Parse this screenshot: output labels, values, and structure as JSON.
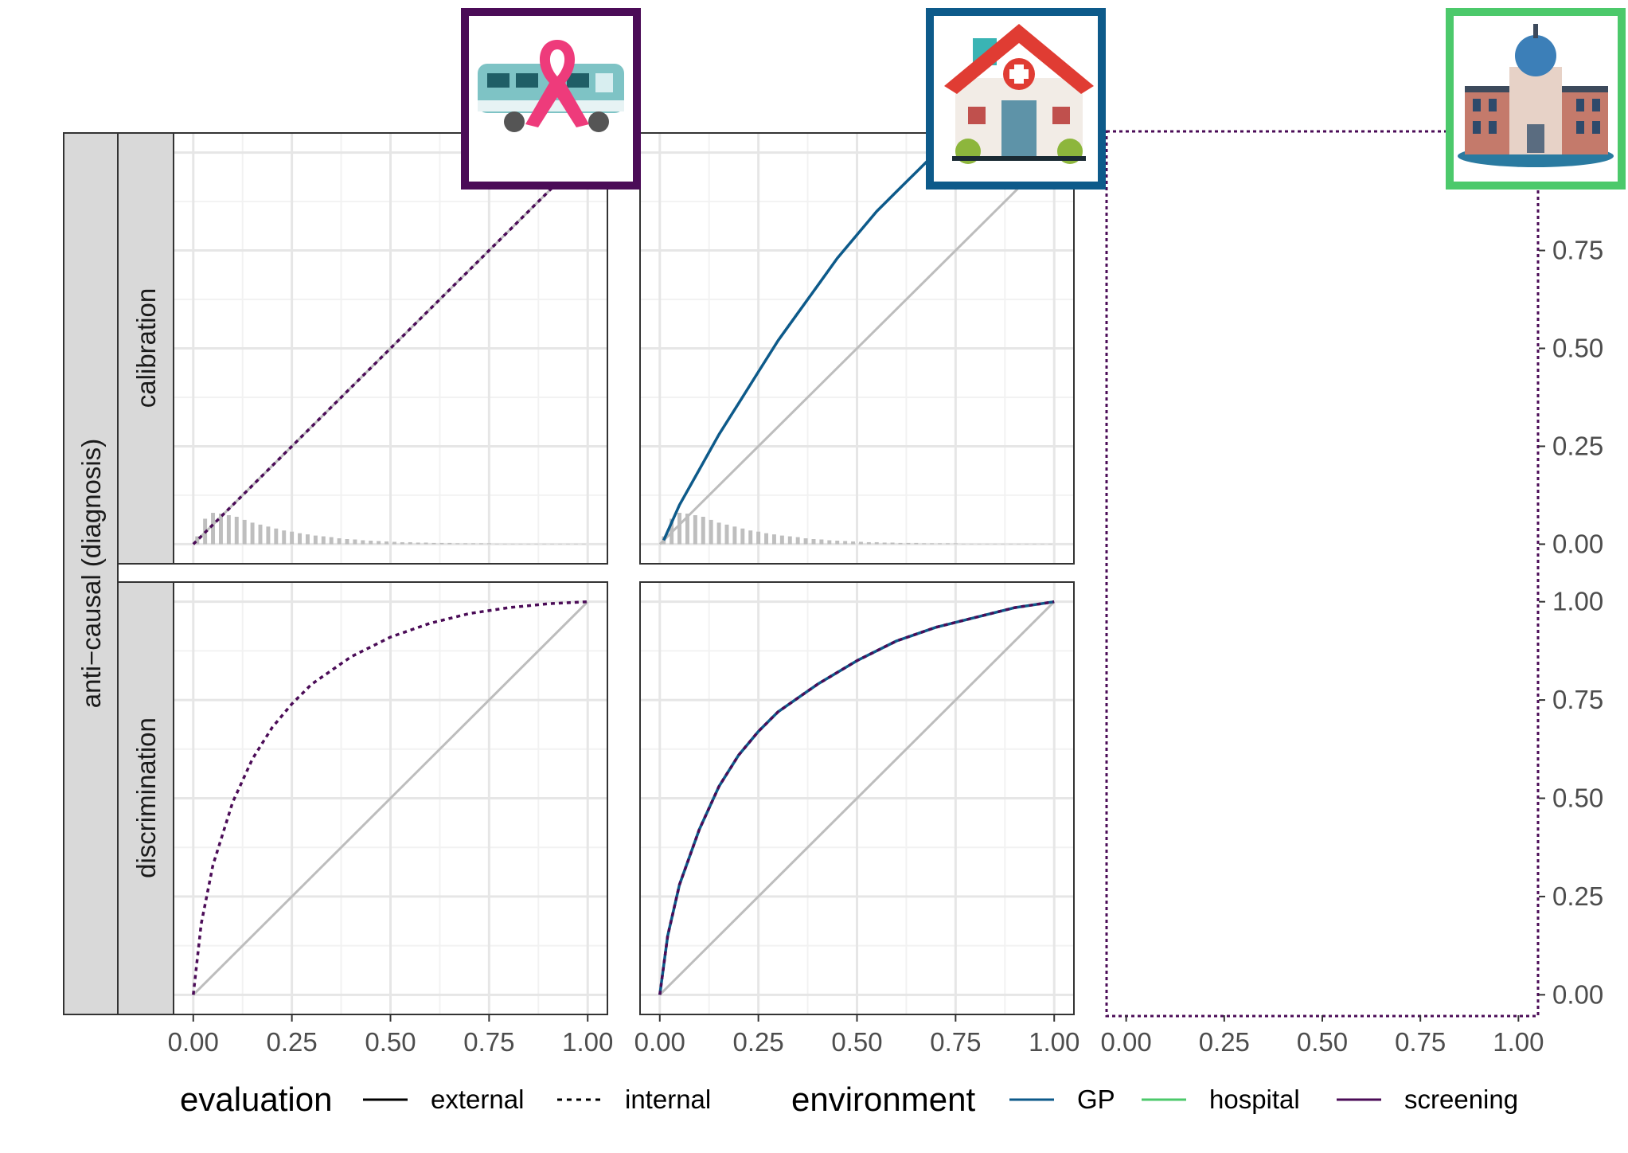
{
  "chart_data": {
    "type": "line",
    "layout": "faceted grid: rows = metric (calibration, discrimination), columns = environment (screening, GP, hospital)",
    "row_strip_outer": "anti−causal (diagnosis)",
    "row_strips": [
      "calibration",
      "discrimination"
    ],
    "column_icons": [
      {
        "environment": "screening",
        "icon": "mobile-screening-van-with-pink-ribbon-icon",
        "frame_color": "#4B0C57"
      },
      {
        "environment": "GP",
        "icon": "gp-clinic-building-icon",
        "frame_color": "#0D5A8A"
      },
      {
        "environment": "hospital",
        "icon": "hospital-building-icon",
        "frame_color": "#4CC96B"
      }
    ],
    "x_ticks": [
      "0.00",
      "0.25",
      "0.50",
      "0.75",
      "1.00"
    ],
    "y_ticks": [
      "0.00",
      "0.25",
      "0.50",
      "0.75",
      "1.00"
    ],
    "xlim": [
      -0.05,
      1.05
    ],
    "ylim": [
      -0.05,
      1.05
    ],
    "grid": true,
    "reference_line": {
      "color": "#BDBDBD",
      "x": [
        0,
        1
      ],
      "y": [
        0,
        1
      ]
    },
    "histogram_color": "#BEBEBE",
    "calibration_histogram": {
      "bin_width": 0.02,
      "x": [
        0.01,
        0.03,
        0.05,
        0.07,
        0.09,
        0.11,
        0.13,
        0.15,
        0.17,
        0.19,
        0.21,
        0.23,
        0.25,
        0.27,
        0.29,
        0.31,
        0.33,
        0.35,
        0.37,
        0.39,
        0.41,
        0.43,
        0.45,
        0.47,
        0.49,
        0.51,
        0.53,
        0.55,
        0.57,
        0.59,
        0.61,
        0.63,
        0.65,
        0.67,
        0.69,
        0.71,
        0.73,
        0.75,
        0.77,
        0.79,
        0.81,
        0.83,
        0.85,
        0.87,
        0.89,
        0.91,
        0.93,
        0.95,
        0.97,
        0.99
      ],
      "y": [
        0.02,
        0.065,
        0.08,
        0.078,
        0.074,
        0.07,
        0.062,
        0.055,
        0.05,
        0.045,
        0.04,
        0.035,
        0.032,
        0.028,
        0.025,
        0.022,
        0.02,
        0.018,
        0.015,
        0.013,
        0.012,
        0.01,
        0.009,
        0.008,
        0.007,
        0.006,
        0.005,
        0.005,
        0.004,
        0.004,
        0.003,
        0.003,
        0.003,
        0.002,
        0.002,
        0.002,
        0.002,
        0.002,
        0.001,
        0.001,
        0.001,
        0.001,
        0.001,
        0.001,
        0.001,
        0.001,
        0.001,
        0.001,
        0.001,
        0.001
      ]
    },
    "panels": [
      {
        "row": "calibration",
        "environment": "screening",
        "show_histogram": true,
        "series": [
          {
            "environment": "screening",
            "evaluation": "internal",
            "color": "#4B0C57",
            "dash": "dotted",
            "x": [
              0,
              1
            ],
            "y": [
              0,
              1
            ]
          }
        ]
      },
      {
        "row": "calibration",
        "environment": "GP",
        "show_histogram": true,
        "series": [
          {
            "environment": "GP",
            "evaluation": "external",
            "color": "#0D5A8A",
            "dash": "solid",
            "x": [
              0.01,
              0.05,
              0.1,
              0.15,
              0.2,
              0.25,
              0.3,
              0.35,
              0.4,
              0.45,
              0.5,
              0.55,
              0.6,
              0.65,
              0.7,
              0.75,
              0.8,
              0.85,
              0.9
            ],
            "y": [
              0.01,
              0.1,
              0.19,
              0.28,
              0.36,
              0.44,
              0.52,
              0.59,
              0.66,
              0.73,
              0.79,
              0.85,
              0.9,
              0.95,
              1.0,
              1.04,
              1.08,
              1.12,
              1.15
            ]
          }
        ]
      },
      {
        "row": "calibration",
        "environment": "hospital",
        "show_histogram": false,
        "series": []
      },
      {
        "row": "discrimination",
        "environment": "screening",
        "show_histogram": false,
        "series": [
          {
            "environment": "screening",
            "evaluation": "internal",
            "color": "#4B0C57",
            "dash": "dotted",
            "x": [
              0,
              0.02,
              0.05,
              0.1,
              0.15,
              0.2,
              0.25,
              0.3,
              0.4,
              0.5,
              0.6,
              0.7,
              0.8,
              0.9,
              1.0
            ],
            "y": [
              0,
              0.18,
              0.33,
              0.49,
              0.6,
              0.68,
              0.74,
              0.79,
              0.86,
              0.91,
              0.945,
              0.97,
              0.985,
              0.995,
              1.0
            ]
          }
        ]
      },
      {
        "row": "discrimination",
        "environment": "GP",
        "show_histogram": false,
        "series": [
          {
            "environment": "GP",
            "evaluation": "external",
            "color": "#0D5A8A",
            "dash": "solid",
            "x": [
              0,
              0.02,
              0.05,
              0.1,
              0.15,
              0.2,
              0.25,
              0.3,
              0.4,
              0.5,
              0.6,
              0.7,
              0.8,
              0.9,
              1.0
            ],
            "y": [
              0,
              0.15,
              0.28,
              0.42,
              0.53,
              0.61,
              0.67,
              0.72,
              0.79,
              0.85,
              0.9,
              0.935,
              0.96,
              0.985,
              1.0
            ]
          },
          {
            "environment": "screening",
            "evaluation": "internal",
            "color": "#4B0C57",
            "dash": "dotted",
            "x": [
              0,
              0.02,
              0.05,
              0.1,
              0.15,
              0.2,
              0.25,
              0.3,
              0.4,
              0.5,
              0.6,
              0.7,
              0.8,
              0.9,
              1.0
            ],
            "y": [
              0,
              0.15,
              0.28,
              0.42,
              0.53,
              0.61,
              0.67,
              0.72,
              0.79,
              0.85,
              0.9,
              0.935,
              0.96,
              0.985,
              1.0
            ]
          }
        ]
      },
      {
        "row": "discrimination",
        "environment": "hospital",
        "show_histogram": false,
        "series": []
      }
    ],
    "legend": {
      "placement": "bottom",
      "evaluation": {
        "title": "evaluation",
        "items": [
          {
            "label": "external",
            "dash": "solid"
          },
          {
            "label": "internal",
            "dash": "dotted"
          }
        ]
      },
      "environment": {
        "title": "environment",
        "items": [
          {
            "label": "GP",
            "color": "#0D5A8A"
          },
          {
            "label": "hospital",
            "color": "#4CC96B"
          },
          {
            "label": "screening",
            "color": "#4B0C57"
          }
        ]
      }
    }
  }
}
